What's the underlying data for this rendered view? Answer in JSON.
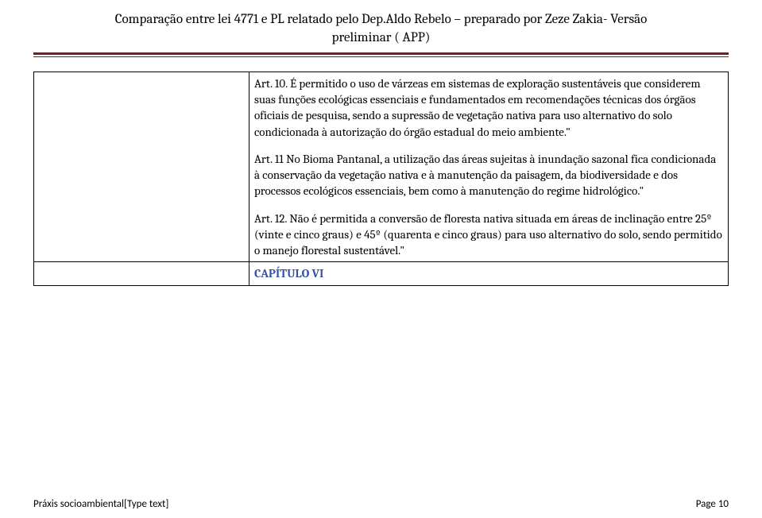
{
  "header": {
    "title_line1": "Comparação entre lei 4771 e PL relatado pelo Dep.Aldo Rebelo – preparado por Zeze Zakia-  Versão",
    "title_line2": "preliminar ( APP)"
  },
  "colors": {
    "rule_color": "#612828",
    "chapter_color": "#3653a4",
    "text_color": "#000000",
    "background": "#ffffff"
  },
  "table": {
    "row1": {
      "left": "",
      "right_p1": "Art. 10. É permitido o uso de várzeas em sistemas de exploração sustentáveis que considerem suas funções ecológicas essenciais e fundamentados em recomendações técnicas dos órgãos oficiais de pesquisa, sendo a supressão de vegetação nativa para uso alternativo do solo condicionada à autorização do órgão estadual do meio ambiente.\"",
      "right_p2": "Art. 11  No Bioma Pantanal, a utilização das áreas sujeitas à inundação sazonal fica condicionada à conservação da vegetação nativa e à manutenção da paisagem, da biodiversidade e dos processos ecológicos essenciais, bem como à manutenção do regime hidrológico.\"",
      "right_p3": "Art. 12. Não é permitida a conversão de floresta nativa situada em áreas de inclinação entre 25º (vinte e cinco graus) e 45º (quarenta e cinco graus) para uso alternativo do solo, sendo permitido o manejo florestal sustentável.\""
    },
    "row2": {
      "left": "",
      "right_chapter": "CAPÍTULO VI"
    }
  },
  "footer": {
    "left": "Práxis socioambiental[Type text]",
    "right": "Page 10"
  }
}
